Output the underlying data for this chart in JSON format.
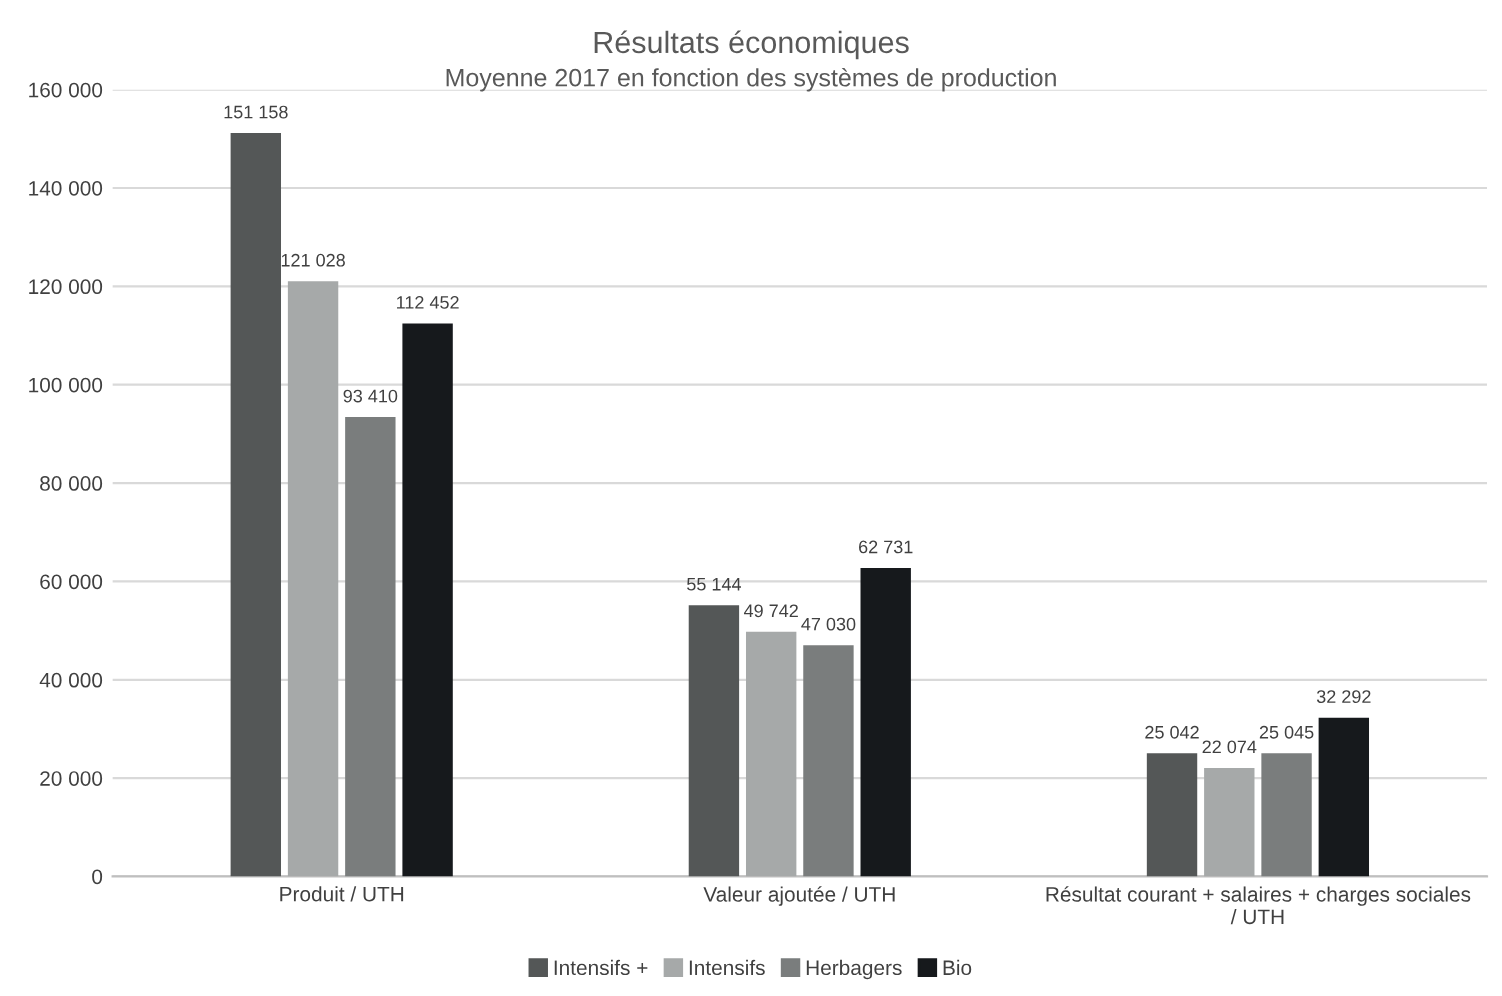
{
  "chart_data": {
    "type": "bar",
    "title": "Résultats économiques",
    "subtitle": "Moyenne 2017 en fonction des systèmes de production",
    "categories": [
      "Produit / UTH",
      "Valeur ajoutée / UTH",
      "Résultat courant + salaires + charges sociales\n/ UTH"
    ],
    "series": [
      {
        "name": "Intensifs +",
        "color": "#545757",
        "values": [
          151158,
          55144,
          25042
        ],
        "value_labels": [
          "151 158",
          "55 144",
          "25 042"
        ]
      },
      {
        "name": "Intensifs",
        "color": "#a6a9a9",
        "values": [
          121028,
          49742,
          22074
        ],
        "value_labels": [
          "121 028",
          "49 742",
          "22 074"
        ]
      },
      {
        "name": "Herbagers",
        "color": "#7a7d7d",
        "values": [
          93410,
          47030,
          25045
        ],
        "value_labels": [
          "93 410",
          "47 030",
          "25 045"
        ]
      },
      {
        "name": "Bio",
        "color": "#16191c",
        "values": [
          112452,
          62731,
          32292
        ],
        "value_labels": [
          "112 452",
          "62 731",
          "32 292"
        ]
      }
    ],
    "ylim": [
      0,
      160000
    ],
    "yticks": [
      0,
      {
        "value": 20000,
        "label": "20 000"
      },
      {
        "value": 40000,
        "label": "40 000"
      },
      {
        "value": 60000,
        "label": "60 000"
      },
      {
        "value": 80000,
        "label": "80 000"
      },
      {
        "value": 100000,
        "label": "100 000"
      },
      {
        "value": 120000,
        "label": "120 000"
      },
      {
        "value": 140000,
        "label": "140 000"
      },
      {
        "value": 160000,
        "label": "160 000"
      }
    ],
    "grid": "y",
    "legend": "bottom"
  }
}
